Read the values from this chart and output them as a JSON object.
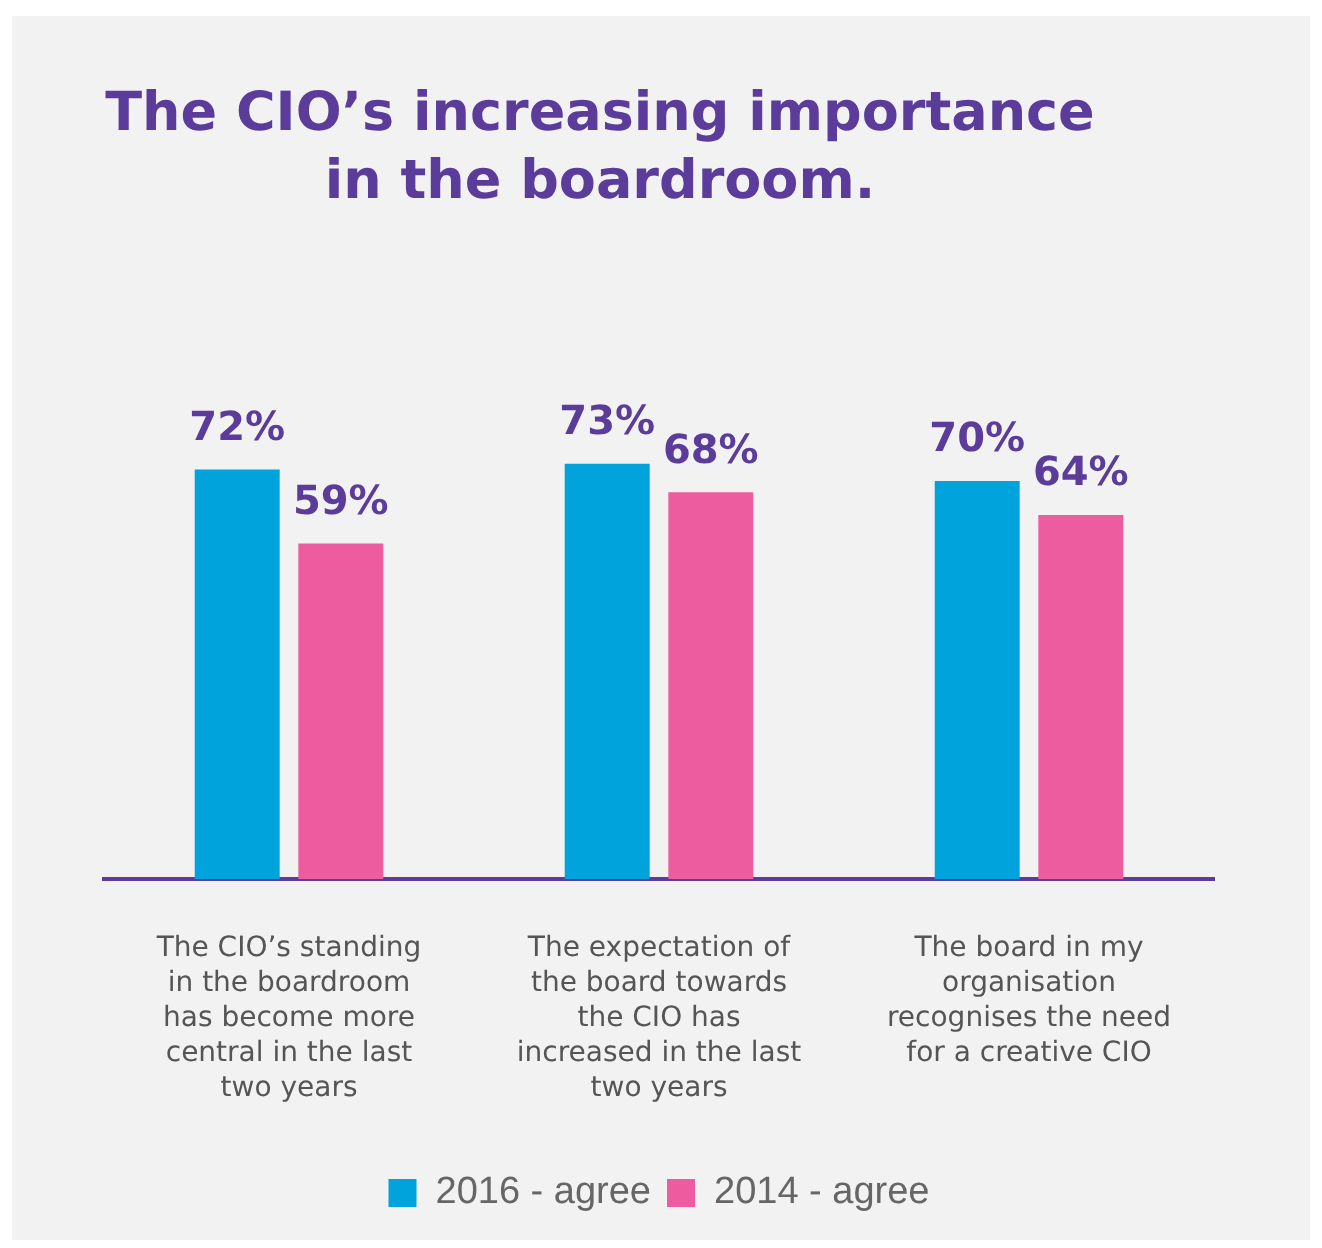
{
  "chart_data": {
    "type": "bar",
    "title": "The CIO’s increasing importance in the boardroom.",
    "categories": [
      "The CIO’s standing in the boardroom has become more central in the last two years",
      "The expectation of the board towards the CIO has increased in the last two years",
      "The board in my organisation recognises the need for a creative CIO"
    ],
    "series": [
      {
        "name": "2016 - agree",
        "color": "#00a3dc",
        "values": [
          72,
          73,
          70
        ],
        "value_labels": [
          "72%",
          "73%",
          "70%"
        ]
      },
      {
        "name": "2014 - agree",
        "color": "#ee5ca0",
        "values": [
          59,
          68,
          64
        ],
        "value_labels": [
          "59%",
          "68%",
          "64%"
        ]
      }
    ],
    "tick_labels": "x",
    "grid": false,
    "legend": "bottom"
  }
}
